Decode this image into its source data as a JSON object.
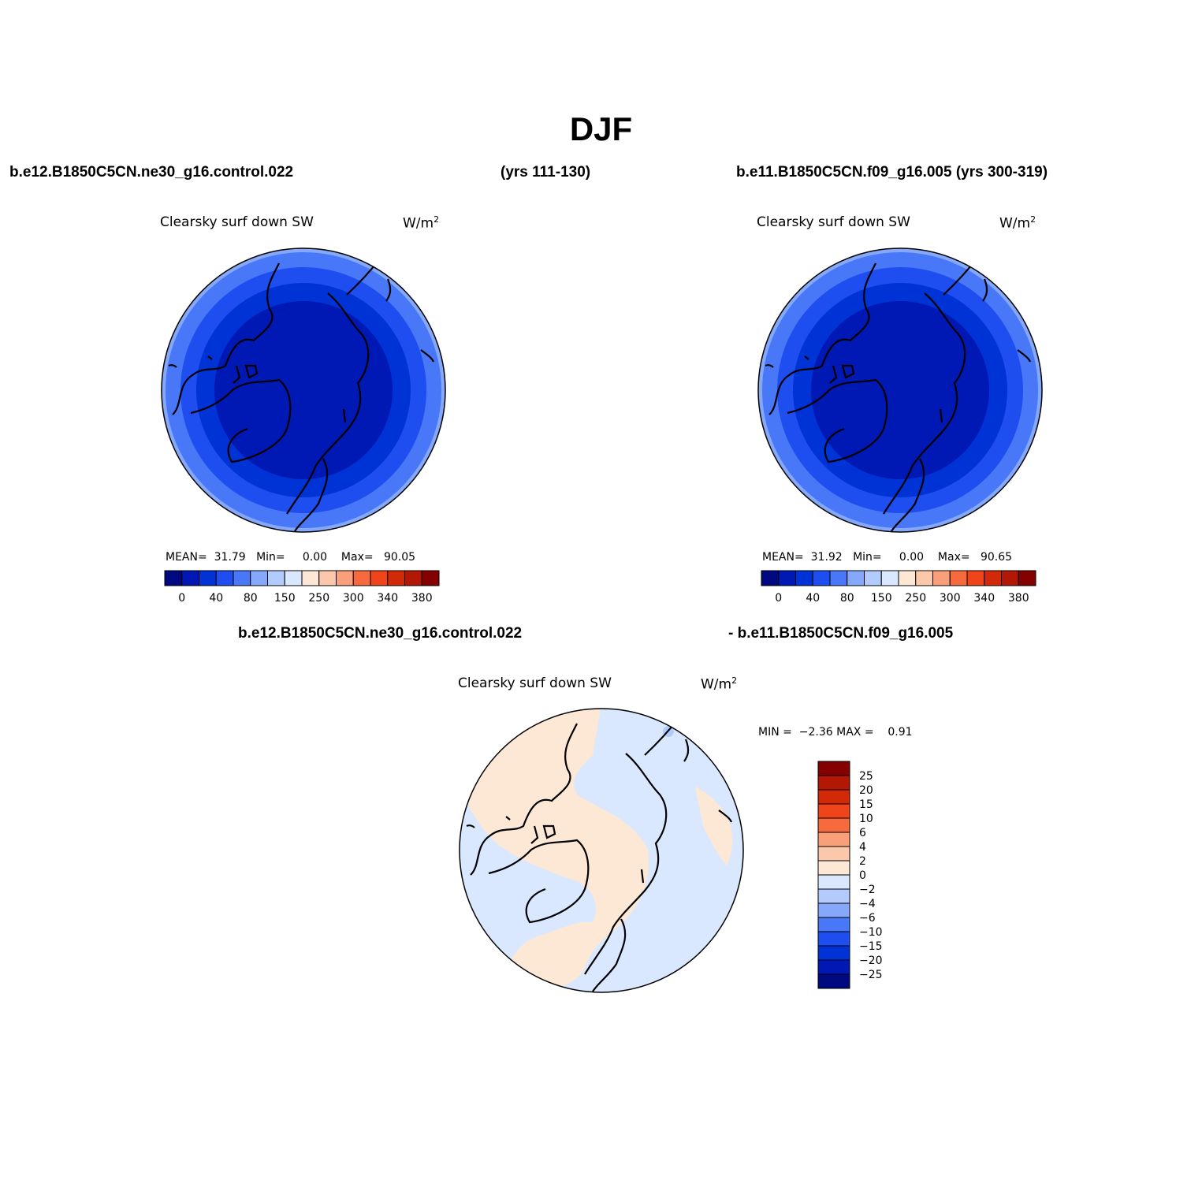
{
  "title": "DJF",
  "labels": {
    "left_run": "b.e12.B1850C5CN.ne30_g16.control.022",
    "left_years": "(yrs 111-130)",
    "right_run": "b.e11.B1850C5CN.f09_g16.005 (yrs 300-319)",
    "diff_run_a": "b.e12.B1850C5CN.ne30_g16.control.022",
    "diff_run_b": "- b.e11.B1850C5CN.f09_g16.005"
  },
  "panels": [
    {
      "variable": "Clearsky surf down SW",
      "units": "W/m",
      "units_sup": "2",
      "stats": {
        "mean_label": "MEAN=",
        "mean": "31.79",
        "min_label": "Min=",
        "min": "0.00",
        "max_label": "Max=",
        "max": "90.05"
      }
    },
    {
      "variable": "Clearsky surf down SW",
      "units": "W/m",
      "units_sup": "2",
      "stats": {
        "mean_label": "MEAN=",
        "mean": "31.92",
        "min_label": "Min=",
        "min": "0.00",
        "max_label": "Max=",
        "max": "90.65"
      }
    },
    {
      "variable": "Clearsky surf down SW",
      "units": "W/m",
      "units_sup": "2",
      "stats": {
        "min_label": "MIN =",
        "min": "−2.36",
        "max_label": "MAX =",
        "max": "0.91"
      }
    }
  ],
  "colorbar_abs": {
    "colors": [
      "#000a80",
      "#0019b4",
      "#0033d6",
      "#1f4ef0",
      "#4877f7",
      "#85a8fb",
      "#b3cafc",
      "#d9e8ff",
      "#fde8d6",
      "#fbc8ab",
      "#f9a07a",
      "#f76a3e",
      "#f0451a",
      "#d22a08",
      "#b21805",
      "#850000"
    ],
    "tick_labels": [
      "0",
      "40",
      "80",
      "150",
      "250",
      "300",
      "340",
      "380"
    ]
  },
  "colorbar_diff": {
    "colors": [
      "#850000",
      "#b21805",
      "#d22a08",
      "#f0451a",
      "#f76a3e",
      "#f9a07a",
      "#fbc8ab",
      "#fde8d6",
      "#d9e8ff",
      "#b3cafc",
      "#85a8fb",
      "#4877f7",
      "#1f4ef0",
      "#0033d6",
      "#0019b4",
      "#000a80"
    ],
    "tick_labels": [
      "25",
      "20",
      "15",
      "10",
      "6",
      "4",
      "2",
      "0",
      "−2",
      "−4",
      "−6",
      "−10",
      "−15",
      "−20",
      "−25"
    ]
  },
  "map_colors": {
    "abs_ring_outer": "#85a8fb",
    "abs_ring_2": "#4877f7",
    "abs_ring_3": "#1f4ef0",
    "abs_ring_4": "#0033d6",
    "abs_core": "#0019b4",
    "diff_positive": "#fde8d6",
    "diff_negative": "#d9e8ff",
    "diff_strong_negative": "#b3cafc",
    "coastline": "#000000"
  }
}
